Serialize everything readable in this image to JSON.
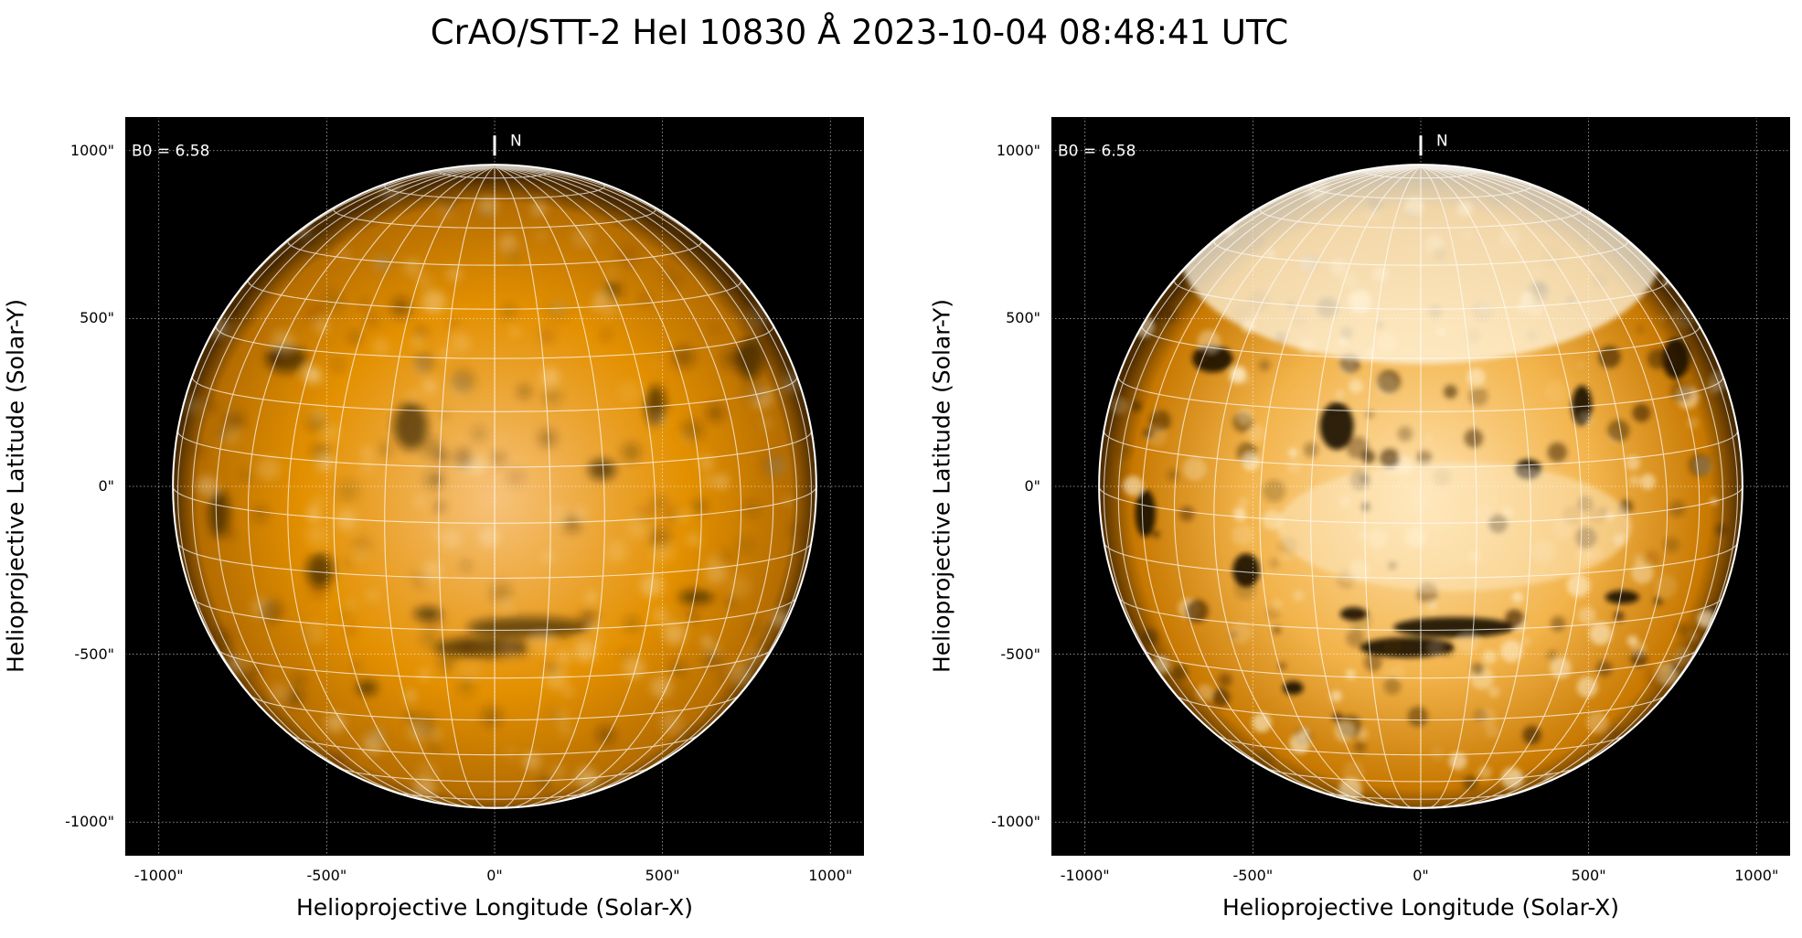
{
  "title": "CrAO/STT-2 HeI 10830 Å 2023-10-04 08:48:41 UTC",
  "chart_data": [
    {
      "type": "heatmap",
      "description_kind": "solar disk image",
      "colormap": "orange (sdoaia1600-like)",
      "xlabel": "Helioprojective Longitude (Solar-X)",
      "ylabel": "Helioprojective Latitude (Solar-Y)",
      "xlim": [
        -1100,
        1100
      ],
      "ylim": [
        -1100,
        1100
      ],
      "xticks": [
        "-1000\"",
        "-500\"",
        "0\"",
        "500\"",
        "1000\""
      ],
      "yticks": [
        "1000\"",
        "500\"",
        "0\"",
        "-500\"",
        "-1000\""
      ],
      "tick_values": [
        -1000,
        -500,
        0,
        500,
        1000
      ],
      "annotation_b0": "B0 = 6.58",
      "north_label": "N",
      "b0_degrees": 6.58,
      "solar_radius_arcsec": 958,
      "heliographic_grid_spacing_deg": 10,
      "grid": true,
      "enhanced": false
    },
    {
      "type": "heatmap",
      "description_kind": "solar disk image",
      "colormap": "orange (sdoaia1600-like)",
      "xlabel": "Helioprojective Longitude (Solar-X)",
      "ylabel": "Helioprojective Latitude (Solar-Y)",
      "xlim": [
        -1100,
        1100
      ],
      "ylim": [
        -1100,
        1100
      ],
      "xticks": [
        "-1000\"",
        "-500\"",
        "0\"",
        "500\"",
        "1000\""
      ],
      "yticks": [
        "1000\"",
        "500\"",
        "0\"",
        "-500\"",
        "-1000\""
      ],
      "tick_values": [
        -1000,
        -500,
        0,
        500,
        1000
      ],
      "annotation_b0": "B0 = 6.58",
      "north_label": "N",
      "b0_degrees": 6.58,
      "solar_radius_arcsec": 958,
      "heliographic_grid_spacing_deg": 10,
      "grid": true,
      "enhanced": true
    }
  ],
  "colors": {
    "disk": "#e08a00",
    "disk_bright": "#ffe6b8",
    "background": "#000000",
    "grid": "#ffffff"
  }
}
